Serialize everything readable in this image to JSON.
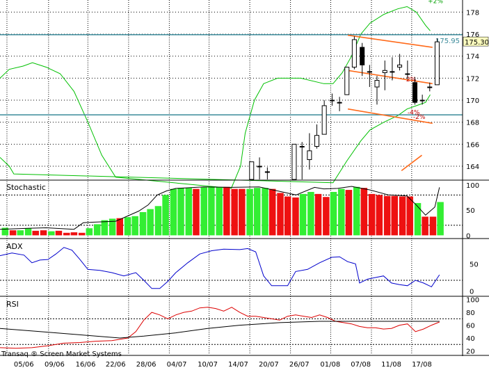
{
  "chart_data": {
    "type": "candlestick",
    "x_tick_labels": [
      "05/06",
      "09/06",
      "16/06",
      "22/06",
      "28/06",
      "04/07",
      "10/07",
      "14/07",
      "20/07",
      "26/07",
      "01/08",
      "07/08",
      "11/08",
      "17/08"
    ],
    "watermark": "Transaq ® Screen Market Systems",
    "price_panel": {
      "y_ticks": [
        164,
        166,
        168,
        170,
        172,
        174,
        176,
        178
      ],
      "ylim": [
        162.8,
        179.1
      ],
      "last_price_label": "175.30",
      "horizontal_levels": [
        {
          "value": 175.95,
          "label": "175.95",
          "color": "#3a8a9a"
        },
        {
          "value": 168.67,
          "label": "",
          "color": "#3a8a9a"
        }
      ],
      "channel_lines": [
        {
          "x": [
            0.752,
            0.935
          ],
          "y": [
            175.9,
            174.8
          ],
          "color": "#ff6a1a"
        },
        {
          "x": [
            0.752,
            0.935
          ],
          "y": [
            172.7,
            171.5
          ],
          "color": "#ff6a1a"
        },
        {
          "x": [
            0.752,
            0.935
          ],
          "y": [
            169.2,
            167.9
          ],
          "color": "#ff6a1a"
        },
        {
          "x": [
            0.868,
            0.912
          ],
          "y": [
            163.6,
            165.0
          ],
          "color": "#ff6a1a"
        }
      ],
      "bands_labels": [
        {
          "label": "+2%",
          "y": 179.0,
          "x": 0.925
        },
        {
          "label": "2%",
          "y": 171.9,
          "x": 0.878
        },
        {
          "label": "-2%",
          "y": 168.5,
          "x": 0.893
        },
        {
          "label": "-4%",
          "y": 168.9,
          "x": 0.881
        }
      ],
      "upper_band": [
        [
          0.0,
          172.0
        ],
        [
          0.02,
          172.8
        ],
        [
          0.05,
          173.1
        ],
        [
          0.07,
          173.4
        ],
        [
          0.1,
          173.0
        ],
        [
          0.13,
          172.4
        ],
        [
          0.16,
          170.8
        ],
        [
          0.19,
          168.0
        ],
        [
          0.22,
          165.0
        ],
        [
          0.25,
          163.0
        ],
        [
          0.5,
          162.0
        ],
        [
          0.52,
          164.0
        ],
        [
          0.53,
          167.0
        ],
        [
          0.55,
          170.0
        ],
        [
          0.57,
          171.5
        ],
        [
          0.6,
          172.0
        ],
        [
          0.65,
          172.0
        ],
        [
          0.7,
          171.5
        ],
        [
          0.72,
          171.5
        ],
        [
          0.74,
          172.5
        ],
        [
          0.76,
          174.0
        ],
        [
          0.78,
          176.0
        ],
        [
          0.8,
          177.0
        ],
        [
          0.83,
          177.8
        ],
        [
          0.86,
          178.3
        ],
        [
          0.88,
          178.5
        ],
        [
          0.9,
          178.0
        ],
        [
          0.92,
          176.8
        ],
        [
          0.93,
          176.3
        ]
      ],
      "lower_band": [
        [
          0.0,
          164.8
        ],
        [
          0.02,
          164.0
        ],
        [
          0.03,
          163.3
        ],
        [
          0.72,
          162.5
        ],
        [
          0.75,
          164.5
        ],
        [
          0.78,
          166.3
        ],
        [
          0.8,
          167.3
        ],
        [
          0.83,
          168.0
        ],
        [
          0.86,
          168.6
        ],
        [
          0.88,
          169.2
        ],
        [
          0.9,
          169.5
        ],
        [
          0.92,
          169.8
        ],
        [
          0.93,
          170.5
        ]
      ],
      "candles": [
        {
          "x": 0.544,
          "open": 162.8,
          "close": 164.4,
          "high": 164.4,
          "low": 162.8
        },
        {
          "x": 0.561,
          "open": 164.0,
          "close": 164.0,
          "high": 164.8,
          "low": 162.8
        },
        {
          "x": 0.578,
          "open": 163.5,
          "close": 163.5,
          "high": 163.9,
          "low": 162.8
        },
        {
          "x": 0.636,
          "open": 162.8,
          "close": 166.0,
          "high": 166.0,
          "low": 162.8
        },
        {
          "x": 0.653,
          "open": 165.8,
          "close": 165.8,
          "high": 166.2,
          "low": 162.8
        },
        {
          "x": 0.669,
          "open": 164.6,
          "close": 165.4,
          "high": 167.0,
          "low": 163.7
        },
        {
          "x": 0.685,
          "open": 165.8,
          "close": 166.8,
          "high": 167.8,
          "low": 165.6
        },
        {
          "x": 0.701,
          "open": 166.9,
          "close": 169.5,
          "high": 170.0,
          "low": 166.9
        },
        {
          "x": 0.718,
          "open": 170.0,
          "close": 170.0,
          "high": 170.6,
          "low": 169.5
        },
        {
          "x": 0.734,
          "open": 169.8,
          "close": 169.8,
          "high": 170.3,
          "low": 169.0
        },
        {
          "x": 0.75,
          "open": 170.5,
          "close": 173.0,
          "high": 173.0,
          "low": 170.5
        },
        {
          "x": 0.766,
          "open": 173.0,
          "close": 175.5,
          "high": 175.8,
          "low": 172.8
        },
        {
          "x": 0.783,
          "open": 174.8,
          "close": 173.2,
          "high": 175.2,
          "low": 172.2
        },
        {
          "x": 0.799,
          "open": 172.6,
          "close": 172.6,
          "high": 173.2,
          "low": 171.2
        },
        {
          "x": 0.815,
          "open": 171.2,
          "close": 171.8,
          "high": 172.2,
          "low": 169.6
        },
        {
          "x": 0.832,
          "open": 172.5,
          "close": 172.7,
          "high": 173.6,
          "low": 170.9
        },
        {
          "x": 0.848,
          "open": 172.6,
          "close": 172.6,
          "high": 173.9,
          "low": 171.8
        },
        {
          "x": 0.864,
          "open": 173.0,
          "close": 173.2,
          "high": 174.2,
          "low": 172.7
        },
        {
          "x": 0.881,
          "open": 172.4,
          "close": 172.4,
          "high": 173.6,
          "low": 171.9
        },
        {
          "x": 0.897,
          "open": 171.6,
          "close": 169.8,
          "high": 172.1,
          "low": 169.6
        },
        {
          "x": 0.913,
          "open": 170.0,
          "close": 170.0,
          "high": 170.5,
          "low": 169.6
        },
        {
          "x": 0.929,
          "open": 171.2,
          "close": 171.2,
          "high": 171.6,
          "low": 170.8
        },
        {
          "x": 0.945,
          "open": 171.4,
          "close": 175.3,
          "high": 175.6,
          "low": 171.4
        }
      ]
    },
    "stochastic_panel": {
      "title": "Stochastic",
      "y_ticks": [
        0,
        50,
        100
      ],
      "ylim": [
        -5,
        108
      ],
      "bars": [
        {
          "x": 0.005,
          "v": 15,
          "c": "g"
        },
        {
          "x": 0.022,
          "v": 10,
          "c": "r"
        },
        {
          "x": 0.038,
          "v": 10,
          "c": "g"
        },
        {
          "x": 0.055,
          "v": 14,
          "c": "g"
        },
        {
          "x": 0.071,
          "v": 9,
          "c": "r"
        },
        {
          "x": 0.088,
          "v": 10,
          "c": "r"
        },
        {
          "x": 0.105,
          "v": 8,
          "c": "g"
        },
        {
          "x": 0.121,
          "v": 9,
          "c": "r"
        },
        {
          "x": 0.138,
          "v": 5,
          "c": "r"
        },
        {
          "x": 0.154,
          "v": 6,
          "c": "r"
        },
        {
          "x": 0.171,
          "v": 5,
          "c": "r"
        },
        {
          "x": 0.187,
          "v": 14,
          "c": "g"
        },
        {
          "x": 0.204,
          "v": 22,
          "c": "g"
        },
        {
          "x": 0.22,
          "v": 30,
          "c": "g"
        },
        {
          "x": 0.237,
          "v": 33,
          "c": "g"
        },
        {
          "x": 0.253,
          "v": 34,
          "c": "r"
        },
        {
          "x": 0.27,
          "v": 36,
          "c": "g"
        },
        {
          "x": 0.286,
          "v": 38,
          "c": "g"
        },
        {
          "x": 0.303,
          "v": 46,
          "c": "g"
        },
        {
          "x": 0.319,
          "v": 52,
          "c": "g"
        },
        {
          "x": 0.336,
          "v": 58,
          "c": "g"
        },
        {
          "x": 0.352,
          "v": 80,
          "c": "g"
        },
        {
          "x": 0.369,
          "v": 92,
          "c": "g"
        },
        {
          "x": 0.385,
          "v": 94,
          "c": "g"
        },
        {
          "x": 0.402,
          "v": 94,
          "c": "g"
        },
        {
          "x": 0.418,
          "v": 92,
          "c": "r"
        },
        {
          "x": 0.435,
          "v": 95,
          "c": "g"
        },
        {
          "x": 0.451,
          "v": 96,
          "c": "g"
        },
        {
          "x": 0.468,
          "v": 96,
          "c": "g"
        },
        {
          "x": 0.484,
          "v": 96,
          "c": "r"
        },
        {
          "x": 0.501,
          "v": 92,
          "c": "r"
        },
        {
          "x": 0.517,
          "v": 92,
          "c": "r"
        },
        {
          "x": 0.534,
          "v": 92,
          "c": "g"
        },
        {
          "x": 0.55,
          "v": 94,
          "c": "g"
        },
        {
          "x": 0.567,
          "v": 94,
          "c": "g"
        },
        {
          "x": 0.583,
          "v": 92,
          "c": "r"
        },
        {
          "x": 0.6,
          "v": 84,
          "c": "r"
        },
        {
          "x": 0.616,
          "v": 77,
          "c": "r"
        },
        {
          "x": 0.633,
          "v": 75,
          "c": "r"
        },
        {
          "x": 0.649,
          "v": 82,
          "c": "g"
        },
        {
          "x": 0.666,
          "v": 86,
          "c": "g"
        },
        {
          "x": 0.682,
          "v": 82,
          "c": "r"
        },
        {
          "x": 0.699,
          "v": 76,
          "c": "r"
        },
        {
          "x": 0.715,
          "v": 86,
          "c": "g"
        },
        {
          "x": 0.732,
          "v": 92,
          "c": "g"
        },
        {
          "x": 0.748,
          "v": 90,
          "c": "r"
        },
        {
          "x": 0.765,
          "v": 96,
          "c": "g"
        },
        {
          "x": 0.781,
          "v": 94,
          "c": "r"
        },
        {
          "x": 0.798,
          "v": 82,
          "c": "r"
        },
        {
          "x": 0.814,
          "v": 80,
          "c": "r"
        },
        {
          "x": 0.831,
          "v": 78,
          "c": "r"
        },
        {
          "x": 0.847,
          "v": 78,
          "c": "r"
        },
        {
          "x": 0.864,
          "v": 77,
          "c": "r"
        },
        {
          "x": 0.88,
          "v": 77,
          "c": "r"
        },
        {
          "x": 0.897,
          "v": 64,
          "c": "g"
        },
        {
          "x": 0.913,
          "v": 37,
          "c": "r"
        },
        {
          "x": 0.93,
          "v": 37,
          "c": "r"
        },
        {
          "x": 0.946,
          "v": 66,
          "c": "g"
        }
      ],
      "line": [
        [
          0.0,
          12
        ],
        [
          0.06,
          14
        ],
        [
          0.1,
          15
        ],
        [
          0.16,
          12
        ],
        [
          0.18,
          25
        ],
        [
          0.2,
          26
        ],
        [
          0.25,
          28
        ],
        [
          0.3,
          48
        ],
        [
          0.32,
          60
        ],
        [
          0.34,
          80
        ],
        [
          0.36,
          88
        ],
        [
          0.38,
          93
        ],
        [
          0.44,
          96
        ],
        [
          0.5,
          95
        ],
        [
          0.56,
          96
        ],
        [
          0.6,
          88
        ],
        [
          0.64,
          80
        ],
        [
          0.68,
          95
        ],
        [
          0.7,
          92
        ],
        [
          0.73,
          93
        ],
        [
          0.76,
          97
        ],
        [
          0.8,
          90
        ],
        [
          0.84,
          80
        ],
        [
          0.88,
          78
        ],
        [
          0.9,
          60
        ],
        [
          0.92,
          40
        ],
        [
          0.94,
          56
        ],
        [
          0.95,
          95
        ]
      ]
    },
    "adx_panel": {
      "title": "ADX",
      "y_ticks": [
        0,
        50
      ],
      "ylim": [
        -8,
        95
      ],
      "line": [
        [
          0.0,
          65
        ],
        [
          0.03,
          70
        ],
        [
          0.06,
          66
        ],
        [
          0.08,
          52
        ],
        [
          0.1,
          57
        ],
        [
          0.12,
          58
        ],
        [
          0.14,
          68
        ],
        [
          0.16,
          80
        ],
        [
          0.18,
          75
        ],
        [
          0.2,
          58
        ],
        [
          0.22,
          40
        ],
        [
          0.25,
          38
        ],
        [
          0.28,
          34
        ],
        [
          0.31,
          28
        ],
        [
          0.34,
          34
        ],
        [
          0.36,
          20
        ],
        [
          0.38,
          5
        ],
        [
          0.4,
          5
        ],
        [
          0.42,
          18
        ],
        [
          0.44,
          34
        ],
        [
          0.47,
          52
        ],
        [
          0.5,
          68
        ],
        [
          0.53,
          74
        ],
        [
          0.56,
          77
        ],
        [
          0.6,
          76
        ],
        [
          0.62,
          78
        ],
        [
          0.64,
          72
        ],
        [
          0.66,
          28
        ],
        [
          0.68,
          10
        ],
        [
          0.72,
          10
        ],
        [
          0.74,
          36
        ],
        [
          0.77,
          40
        ],
        [
          0.8,
          52
        ],
        [
          0.83,
          62
        ],
        [
          0.85,
          63
        ],
        [
          0.87,
          54
        ],
        [
          0.89,
          50
        ],
        [
          0.9,
          15
        ],
        [
          0.92,
          22
        ],
        [
          0.94,
          25
        ],
        [
          0.96,
          28
        ],
        [
          0.98,
          15
        ],
        [
          1.0,
          12
        ],
        [
          1.02,
          10
        ],
        [
          1.04,
          20
        ],
        [
          1.06,
          15
        ],
        [
          1.08,
          8
        ],
        [
          1.1,
          30
        ]
      ]
    },
    "rsi_panel": {
      "title": "RSI",
      "y_ticks": [
        20,
        40,
        60,
        80,
        100
      ],
      "ylim": [
        14,
        104
      ],
      "rsi_line": [
        [
          0.0,
          25
        ],
        [
          0.04,
          24
        ],
        [
          0.08,
          25
        ],
        [
          0.12,
          28
        ],
        [
          0.16,
          32
        ],
        [
          0.2,
          33
        ],
        [
          0.24,
          35
        ],
        [
          0.28,
          36
        ],
        [
          0.32,
          40
        ],
        [
          0.34,
          50
        ],
        [
          0.36,
          68
        ],
        [
          0.38,
          80
        ],
        [
          0.4,
          76
        ],
        [
          0.42,
          70
        ],
        [
          0.44,
          76
        ],
        [
          0.46,
          80
        ],
        [
          0.48,
          82
        ],
        [
          0.5,
          87
        ],
        [
          0.52,
          88
        ],
        [
          0.54,
          86
        ],
        [
          0.56,
          82
        ],
        [
          0.58,
          88
        ],
        [
          0.6,
          80
        ],
        [
          0.62,
          74
        ],
        [
          0.64,
          74
        ],
        [
          0.66,
          72
        ],
        [
          0.68,
          70
        ],
        [
          0.7,
          68
        ],
        [
          0.72,
          74
        ],
        [
          0.74,
          76
        ],
        [
          0.76,
          74
        ],
        [
          0.78,
          72
        ],
        [
          0.8,
          76
        ],
        [
          0.82,
          72
        ],
        [
          0.84,
          66
        ],
        [
          0.86,
          64
        ],
        [
          0.88,
          62
        ],
        [
          0.9,
          58
        ],
        [
          0.92,
          56
        ],
        [
          0.94,
          56
        ],
        [
          0.96,
          54
        ],
        [
          0.98,
          55
        ],
        [
          1.0,
          60
        ],
        [
          1.02,
          62
        ],
        [
          1.04,
          50
        ],
        [
          1.06,
          54
        ],
        [
          1.08,
          60
        ],
        [
          1.1,
          65
        ]
      ],
      "ma_line": [
        [
          0.0,
          55
        ],
        [
          0.1,
          50
        ],
        [
          0.2,
          45
        ],
        [
          0.3,
          40
        ],
        [
          0.36,
          43
        ],
        [
          0.44,
          48
        ],
        [
          0.52,
          55
        ],
        [
          0.6,
          60
        ],
        [
          0.7,
          64
        ],
        [
          0.8,
          66
        ],
        [
          0.9,
          66
        ],
        [
          1.0,
          66
        ],
        [
          1.1,
          66
        ]
      ]
    }
  }
}
